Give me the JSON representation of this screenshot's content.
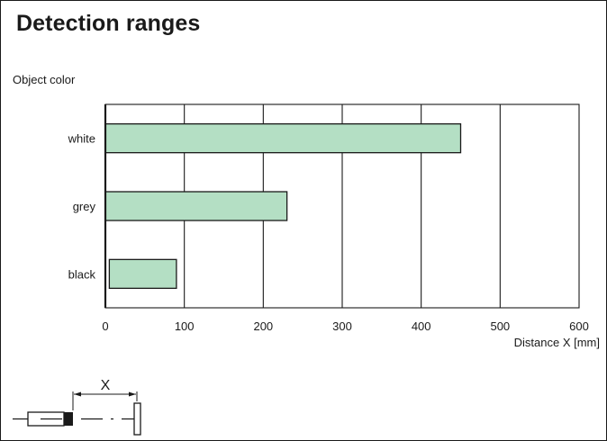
{
  "title": "Detection ranges",
  "chart_data": {
    "type": "bar",
    "orientation": "horizontal",
    "ylabel": "Object color",
    "xlabel": "Distance X [mm]",
    "categories": [
      "white",
      "grey",
      "black"
    ],
    "series": [
      {
        "starts": [
          0,
          0,
          5
        ],
        "values": [
          450,
          230,
          90
        ]
      }
    ],
    "xlim": [
      0,
      600
    ],
    "xticks": [
      0,
      100,
      200,
      300,
      400,
      500,
      600
    ],
    "grid": true,
    "bar_color": "#b4dfc4",
    "line_color": "#1a1a1a"
  },
  "sensor_diagram": {
    "dimension_label": "X"
  }
}
